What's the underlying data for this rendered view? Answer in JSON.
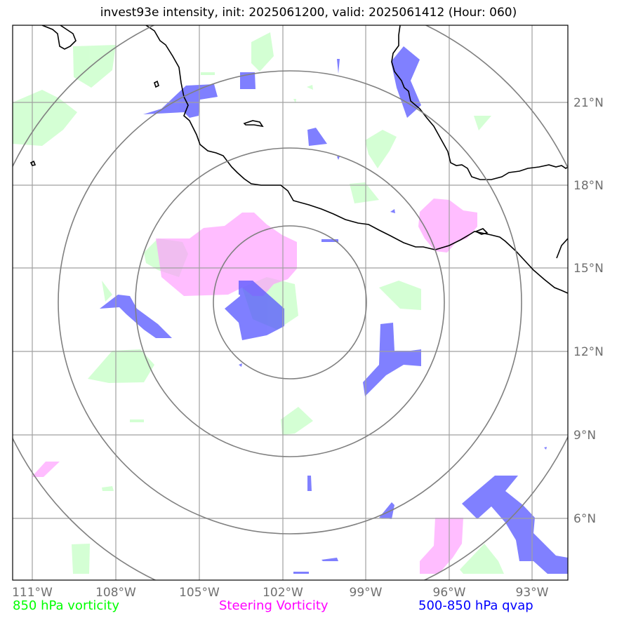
{
  "title": "invest93e intensity, init: 2025061200, valid: 2025061412 (Hour: 060)",
  "legend": {
    "vort850": {
      "label": "850 hPa vorticity",
      "color": "#00ff00"
    },
    "steering": {
      "label": "Steering Vorticity",
      "color": "#ff00ff"
    },
    "qvap": {
      "label": "500-850 hPa qvap",
      "color": "#0000ff"
    }
  },
  "lon_ticks": [
    "111°W",
    "108°W",
    "105°W",
    "102°W",
    "99°W",
    "96°W",
    "93°W"
  ],
  "lat_ticks": [
    "21°N",
    "18°N",
    "15°N",
    "12°N",
    "9°N",
    "6°N"
  ],
  "colors": {
    "vort850_fill": "#ccffcc",
    "steering_fill": "#ffaaff",
    "qvap_fill": "#6666ff",
    "grid": "#a0a0a0",
    "rings": "#808080",
    "coast": "#000000"
  }
}
